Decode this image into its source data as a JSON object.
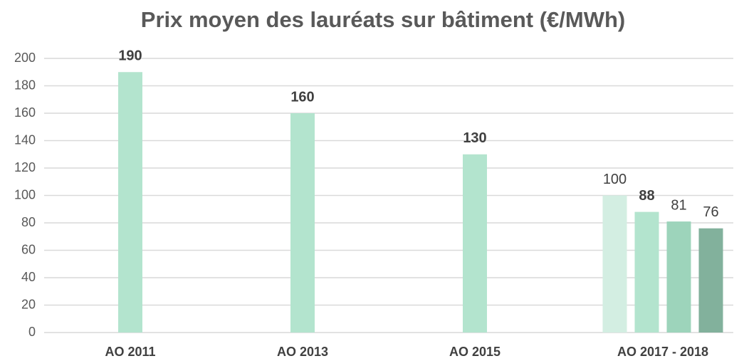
{
  "chart_data": {
    "type": "bar",
    "title": "Prix moyen des lauréats sur bâtiment (€/MWh)",
    "categories": [
      "AO 2011",
      "AO 2013",
      "AO 2015",
      "AO 2017 - 2018"
    ],
    "series": [
      {
        "colors": [
          "#b3e4ce",
          "#b3e4ce",
          "#b3e4ce",
          "#d3eee2"
        ],
        "bold": [
          true,
          true,
          true,
          false
        ],
        "values": [
          190,
          160,
          130,
          100
        ]
      },
      {
        "colors": [
          "#b3e4ce",
          "#b3e4ce",
          "#b3e4ce",
          "#b3e4ce"
        ],
        "bold": [
          true,
          true,
          true,
          true
        ],
        "values": [
          null,
          null,
          null,
          88
        ]
      },
      {
        "colors": [
          "#9dd4bb",
          "#9dd4bb",
          "#9dd4bb",
          "#9dd4bb"
        ],
        "bold": [
          false,
          false,
          false,
          false
        ],
        "values": [
          null,
          null,
          null,
          81
        ]
      },
      {
        "colors": [
          "#82b19c",
          "#82b19c",
          "#82b19c",
          "#82b19c"
        ],
        "bold": [
          false,
          false,
          false,
          false
        ],
        "values": [
          null,
          null,
          null,
          76
        ]
      }
    ],
    "ylim": [
      0,
      200
    ],
    "yticks": [
      0,
      20,
      40,
      60,
      80,
      100,
      120,
      140,
      160,
      180,
      200
    ],
    "grid": true
  }
}
